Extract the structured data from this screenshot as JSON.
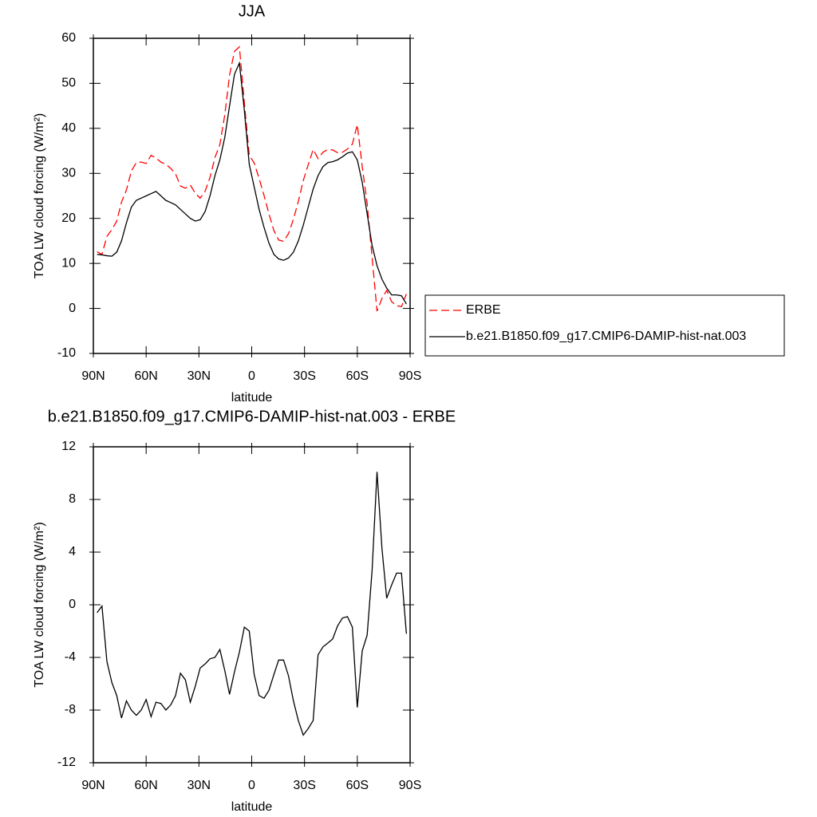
{
  "chart_data": [
    {
      "type": "line",
      "title": "JJA",
      "xlabel": "latitude",
      "ylabel": "TOA LW cloud forcing (W/m²)",
      "x": [
        87.9,
        85.1,
        82.3,
        79.5,
        76.7,
        74.0,
        71.2,
        68.4,
        65.6,
        62.8,
        60.0,
        57.2,
        54.4,
        51.6,
        48.8,
        46.0,
        43.3,
        40.5,
        37.7,
        34.9,
        32.1,
        29.3,
        26.5,
        23.7,
        20.9,
        18.1,
        15.3,
        12.6,
        9.8,
        7.0,
        4.2,
        1.4,
        -1.4,
        -4.2,
        -7.0,
        -9.8,
        -12.6,
        -15.3,
        -18.1,
        -20.9,
        -23.7,
        -26.5,
        -29.3,
        -32.1,
        -34.9,
        -37.7,
        -40.5,
        -43.3,
        -46.0,
        -48.8,
        -51.6,
        -54.4,
        -57.2,
        -60.0,
        -62.8,
        -65.6,
        -68.4,
        -71.2,
        -74.0,
        -76.7,
        -79.5,
        -82.3,
        -85.1,
        -87.9
      ],
      "series": [
        {
          "name": "ERBE",
          "color": "#ff0000",
          "line_style": "dashed",
          "values": [
            12.6,
            12.0,
            16.0,
            17.5,
            19.4,
            23.6,
            26.3,
            30.5,
            32.4,
            32.5,
            32.2,
            34.0,
            33.4,
            32.5,
            32.0,
            31.1,
            29.9,
            27.2,
            26.7,
            27.4,
            25.6,
            24.5,
            26.0,
            29.1,
            33.5,
            36.4,
            43.0,
            51.8,
            57.1,
            58.1,
            45.7,
            34.0,
            32.3,
            28.9,
            25.1,
            21.0,
            17.3,
            15.2,
            14.9,
            16.6,
            19.8,
            23.8,
            28.4,
            31.9,
            35.3,
            33.3,
            34.7,
            35.3,
            35.2,
            34.6,
            34.7,
            35.4,
            36.5,
            40.8,
            31.5,
            23.3,
            11.4,
            -0.6,
            2.2,
            4.0,
            1.5,
            0.6,
            0.4,
            3.2
          ]
        },
        {
          "name": "b.e21.B1850.f09_g17.CMIP6-DAMIP-hist-nat.003",
          "color": "#000000",
          "line_style": "solid",
          "values": [
            12,
            11.9,
            11.7,
            11.6,
            12.5,
            15,
            19,
            22.5,
            24,
            24.5,
            25,
            25.5,
            26,
            25,
            24,
            23.5,
            23,
            22,
            21,
            20,
            19.4,
            19.7,
            21.5,
            25,
            29.5,
            33,
            38,
            45,
            52,
            54.5,
            44,
            32,
            27,
            22,
            18,
            14.5,
            12,
            11,
            10.7,
            11.2,
            12.5,
            15,
            18.5,
            22.5,
            26.5,
            29.5,
            31.5,
            32.4,
            32.6,
            33,
            33.7,
            34.5,
            34.8,
            33,
            28,
            21,
            14,
            9.5,
            6.5,
            4.5,
            3,
            3,
            2.8,
            1
          ]
        }
      ],
      "xlim": [
        90,
        -90
      ],
      "xticks": [
        {
          "value": 90,
          "label": "90N"
        },
        {
          "value": 60,
          "label": "60N"
        },
        {
          "value": 30,
          "label": "30N"
        },
        0,
        {
          "value": -30,
          "label": "30S"
        },
        {
          "value": -60,
          "label": "60S"
        },
        {
          "value": -90,
          "label": "90S"
        }
      ],
      "ylim": [
        -10,
        60
      ],
      "yticks": [
        -10,
        0,
        10,
        20,
        30,
        40,
        50,
        60
      ],
      "legend": "right"
    },
    {
      "type": "line",
      "title": "b.e21.B1850.f09_g17.CMIP6-DAMIP-hist-nat.003 - ERBE",
      "xlabel": "latitude",
      "ylabel": "TOA LW cloud forcing (W/m²)",
      "x": [
        87.9,
        85.1,
        82.3,
        79.5,
        76.7,
        74.0,
        71.2,
        68.4,
        65.6,
        62.8,
        60.0,
        57.2,
        54.4,
        51.6,
        48.8,
        46.0,
        43.3,
        40.5,
        37.7,
        34.9,
        32.1,
        29.3,
        26.5,
        23.7,
        20.9,
        18.1,
        15.3,
        12.6,
        9.8,
        7.0,
        4.2,
        1.4,
        -1.4,
        -4.2,
        -7.0,
        -9.8,
        -12.6,
        -15.3,
        -18.1,
        -20.9,
        -23.7,
        -26.5,
        -29.3,
        -32.1,
        -34.9,
        -37.7,
        -40.5,
        -43.3,
        -46.0,
        -48.8,
        -51.6,
        -54.4,
        -57.2,
        -60.0,
        -62.8,
        -65.6,
        -68.4,
        -71.2,
        -74.0,
        -76.7,
        -79.5,
        -82.3,
        -85.1,
        -87.9
      ],
      "values": [
        -0.6,
        -0.1,
        -4.3,
        -5.9,
        -6.9,
        -8.6,
        -7.3,
        -8.0,
        -8.4,
        -8.0,
        -7.2,
        -8.5,
        -7.4,
        -7.5,
        -8.0,
        -7.6,
        -6.9,
        -5.2,
        -5.7,
        -7.4,
        -6.2,
        -4.8,
        -4.5,
        -4.1,
        -4.0,
        -3.4,
        -5.0,
        -6.8,
        -5.1,
        -3.6,
        -1.7,
        -2.0,
        -5.3,
        -6.9,
        -7.1,
        -6.5,
        -5.3,
        -4.2,
        -4.2,
        -5.4,
        -7.3,
        -8.8,
        -9.9,
        -9.4,
        -8.8,
        -3.8,
        -3.2,
        -2.9,
        -2.6,
        -1.6,
        -1.0,
        -0.9,
        -1.7,
        -7.8,
        -3.5,
        -2.3,
        2.6,
        10.1,
        4.3,
        0.5,
        1.5,
        2.4,
        2.4,
        -2.2
      ],
      "color": "#000000",
      "xlim": [
        90,
        -90
      ],
      "xticks": [
        {
          "value": 90,
          "label": "90N"
        },
        {
          "value": 60,
          "label": "60N"
        },
        {
          "value": 30,
          "label": "30N"
        },
        0,
        {
          "value": -30,
          "label": "30S"
        },
        {
          "value": -60,
          "label": "60S"
        },
        {
          "value": -90,
          "label": "90S"
        }
      ],
      "ylim": [
        -12,
        12
      ],
      "yticks": [
        -12,
        -8,
        -4,
        0,
        4,
        8,
        12
      ]
    }
  ]
}
